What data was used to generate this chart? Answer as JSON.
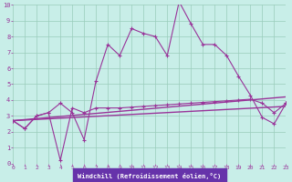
{
  "xlabel": "Windchill (Refroidissement éolien,°C)",
  "bg_color": "#c8eee8",
  "grid_color": "#99ccbb",
  "line_color": "#993399",
  "xlabel_bg": "#6633aa",
  "xmin": 0,
  "xmax": 23,
  "ymin": 0,
  "ymax": 10,
  "x_ticks": [
    0,
    1,
    2,
    3,
    4,
    5,
    6,
    7,
    8,
    9,
    10,
    11,
    12,
    13,
    14,
    15,
    16,
    17,
    18,
    19,
    20,
    21,
    22,
    23
  ],
  "y_ticks": [
    0,
    1,
    2,
    3,
    4,
    5,
    6,
    7,
    8,
    9,
    10
  ],
  "line1_x": [
    0,
    1,
    2,
    3,
    4,
    5,
    6,
    7,
    8,
    9,
    10,
    11,
    12,
    13,
    14,
    15,
    16,
    17,
    18,
    19,
    20,
    21,
    22,
    23
  ],
  "line1_y": [
    2.7,
    2.2,
    3.0,
    3.2,
    3.8,
    3.2,
    1.5,
    5.2,
    7.5,
    6.8,
    8.5,
    8.2,
    8.0,
    6.8,
    10.2,
    8.8,
    7.5,
    7.5,
    6.8,
    5.5,
    4.3,
    2.9,
    2.5,
    3.8
  ],
  "line2_x": [
    0,
    1,
    2,
    3,
    4,
    5,
    6,
    7,
    8,
    9,
    10,
    11,
    12,
    13,
    14,
    15,
    16,
    17,
    18,
    19,
    20,
    21,
    22,
    23
  ],
  "line2_y": [
    2.7,
    2.2,
    3.0,
    3.2,
    0.2,
    3.5,
    3.2,
    3.5,
    3.5,
    3.5,
    3.55,
    3.6,
    3.65,
    3.7,
    3.75,
    3.8,
    3.85,
    3.9,
    3.95,
    4.0,
    4.05,
    3.8,
    3.2,
    3.8
  ],
  "line3_x": [
    0,
    23
  ],
  "line3_y": [
    2.7,
    4.2
  ],
  "line4_x": [
    0,
    23
  ],
  "line4_y": [
    2.7,
    3.6
  ]
}
